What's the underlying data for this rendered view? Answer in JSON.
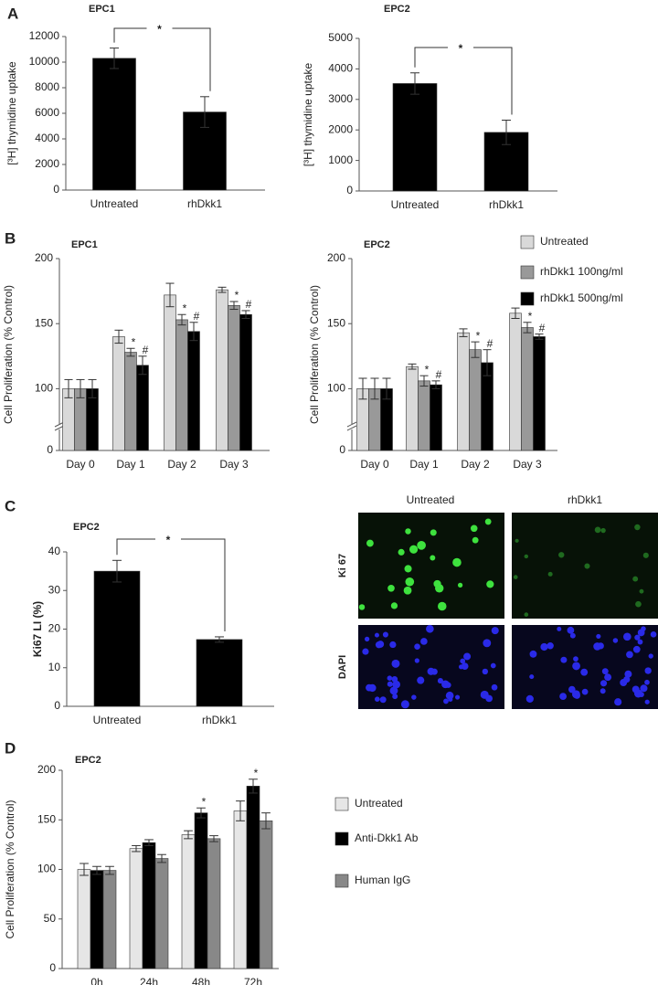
{
  "panel_labels": [
    "A",
    "B",
    "C",
    "D"
  ],
  "image_panel": {
    "columns": [
      "Untreated",
      "rhDkk1"
    ],
    "rows": [
      "Ki 67",
      "DAPI"
    ]
  },
  "chart_data": [
    {
      "type": "bar",
      "title": "EPC1",
      "y_label": "[³H] thymidine uptake",
      "categories": [
        "Untreated",
        "rhDkk1"
      ],
      "series": [
        {
          "color": "#000000",
          "values": [
            10300,
            6100
          ],
          "errors": [
            800,
            1200
          ]
        }
      ],
      "ylim": [
        0,
        12000
      ],
      "yticks": [
        0,
        2000,
        4000,
        6000,
        8000,
        10000,
        12000
      ],
      "annotation": "*"
    },
    {
      "type": "bar",
      "title": "EPC2",
      "y_label": "[³H] thymidine uptake",
      "categories": [
        "Untreated",
        "rhDkk1"
      ],
      "series": [
        {
          "color": "#000000",
          "values": [
            3520,
            1920
          ],
          "errors": [
            350,
            400
          ]
        }
      ],
      "ylim": [
        0,
        5000
      ],
      "yticks": [
        0,
        1000,
        2000,
        3000,
        4000,
        5000
      ],
      "annotation": "*"
    },
    {
      "type": "bar",
      "title": "EPC1",
      "y_label": "Cell Proliferation (% Control)",
      "categories": [
        "Day 0",
        "Day 1",
        "Day 2",
        "Day 3"
      ],
      "series": [
        {
          "color": "#d9d9d9",
          "values": [
            100,
            140,
            172,
            176
          ],
          "errors": [
            7,
            5,
            9,
            2
          ]
        },
        {
          "color": "#999999",
          "values": [
            100,
            128,
            153,
            164
          ],
          "errors": [
            7,
            3,
            4,
            3
          ],
          "markers": [
            null,
            "*",
            "*",
            "*"
          ]
        },
        {
          "color": "#000000",
          "values": [
            100,
            118,
            144,
            157
          ],
          "errors": [
            7,
            7,
            7,
            3
          ],
          "markers": [
            null,
            "#",
            "#",
            "#"
          ]
        }
      ],
      "ylim": [
        0,
        200
      ],
      "ybreak": [
        0,
        75
      ],
      "yticks": [
        0,
        100,
        150,
        200
      ]
    },
    {
      "type": "bar",
      "title": "EPC2",
      "y_label": "Cell Proliferation (% Control)",
      "categories": [
        "Day 0",
        "Day 1",
        "Day 2",
        "Day 3"
      ],
      "series": [
        {
          "name": "Untreated",
          "color": "#d9d9d9",
          "values": [
            100,
            117,
            143,
            158
          ],
          "errors": [
            8,
            2,
            3,
            4
          ]
        },
        {
          "name": "rhDkk1 100ng/ml",
          "color": "#999999",
          "values": [
            100,
            106,
            130,
            147
          ],
          "errors": [
            8,
            4,
            6,
            4
          ],
          "markers": [
            null,
            "*",
            "*",
            "*"
          ]
        },
        {
          "name": "rhDkk1 500ng/ml",
          "color": "#000000",
          "values": [
            100,
            103,
            120,
            140
          ],
          "errors": [
            8,
            3,
            10,
            2
          ],
          "markers": [
            null,
            "#",
            "#",
            "#"
          ]
        }
      ],
      "ylim": [
        0,
        200
      ],
      "ybreak": [
        0,
        75
      ],
      "yticks": [
        0,
        100,
        150,
        200
      ],
      "legend": "right"
    },
    {
      "type": "bar",
      "title": "EPC2",
      "y_label": "Ki67 LI (%)",
      "categories": [
        "Untreated",
        "rhDkk1"
      ],
      "series": [
        {
          "color": "#000000",
          "values": [
            35,
            17.3
          ],
          "errors": [
            2.8,
            0.7
          ]
        }
      ],
      "ylim": [
        0,
        40
      ],
      "yticks": [
        0,
        10,
        20,
        30,
        40
      ],
      "annotation": "*"
    },
    {
      "type": "bar",
      "title": "EPC2",
      "y_label": "Cell Proliferation (% Control)",
      "categories": [
        "0h",
        "24h",
        "48h",
        "72h"
      ],
      "series": [
        {
          "name": "Untreated",
          "color": "#e6e6e6",
          "values": [
            100,
            121,
            135,
            159
          ],
          "errors": [
            6,
            3,
            4,
            10
          ]
        },
        {
          "name": "Anti-Dkk1 Ab",
          "color": "#000000",
          "values": [
            99,
            127,
            157,
            184
          ],
          "errors": [
            4,
            3,
            5,
            7
          ],
          "markers": [
            null,
            null,
            "*",
            "*"
          ]
        },
        {
          "name": "Human IgG",
          "color": "#888888",
          "values": [
            99,
            111,
            131,
            149
          ],
          "errors": [
            4,
            4,
            3,
            8
          ]
        }
      ],
      "ylim": [
        0,
        200
      ],
      "yticks": [
        0,
        50,
        100,
        150,
        200
      ],
      "legend": "right"
    }
  ]
}
